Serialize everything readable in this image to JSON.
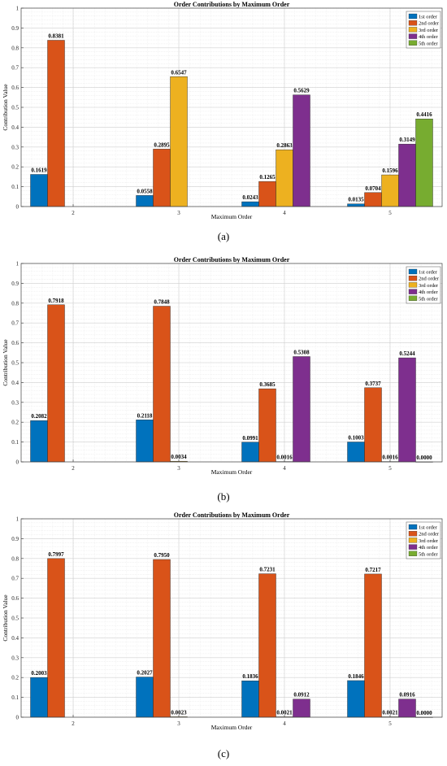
{
  "chart_data": [
    {
      "type": "bar",
      "title": "Order Contributions by Maximum Order",
      "xlabel": "Maximum Order",
      "ylabel": "Contribution Value",
      "categories": [
        "2",
        "3",
        "4",
        "5"
      ],
      "ylim": [
        0,
        1
      ],
      "yticks": [
        "0",
        "0.1",
        "0.2",
        "0.3",
        "0.4",
        "0.5",
        "0.6",
        "0.7",
        "0.8",
        "0.9",
        "1"
      ],
      "grid": true,
      "legend_position": "top-right",
      "caption": "(a)",
      "series": [
        {
          "name": "1st order",
          "color": "#0072BD",
          "values": [
            0.1619,
            0.0558,
            0.0243,
            0.0135
          ],
          "labels": [
            "0.1619",
            "0.0558",
            "0.0243",
            "0.0135"
          ]
        },
        {
          "name": "2nd order",
          "color": "#D95319",
          "values": [
            0.8381,
            0.2895,
            0.1265,
            0.0704
          ],
          "labels": [
            "0.8381",
            "0.2895",
            "0.1265",
            "0.0704"
          ]
        },
        {
          "name": "3rd order",
          "color": "#EDB120",
          "values": [
            null,
            0.6547,
            0.2863,
            0.1596
          ],
          "labels": [
            "",
            "0.6547",
            "0.2863",
            "0.1596"
          ]
        },
        {
          "name": "4th order",
          "color": "#7E2F8E",
          "values": [
            null,
            null,
            0.5629,
            0.3149
          ],
          "labels": [
            "",
            "",
            "0.5629",
            "0.3149"
          ]
        },
        {
          "name": "5th order",
          "color": "#77AC30",
          "values": [
            null,
            null,
            null,
            0.4416
          ],
          "labels": [
            "",
            "",
            "",
            "0.4416"
          ]
        }
      ]
    },
    {
      "type": "bar",
      "title": "Order Contributions by Maximum Order",
      "xlabel": "Maximum Order",
      "ylabel": "Contribution Value",
      "categories": [
        "2",
        "3",
        "4",
        "5"
      ],
      "ylim": [
        0,
        1
      ],
      "yticks": [
        "0",
        "0.1",
        "0.2",
        "0.3",
        "0.4",
        "0.5",
        "0.6",
        "0.7",
        "0.8",
        "0.9",
        "1"
      ],
      "grid": true,
      "legend_position": "top-right",
      "caption": "(b)",
      "series": [
        {
          "name": "1st order",
          "color": "#0072BD",
          "values": [
            0.2082,
            0.2118,
            0.0991,
            0.1003
          ],
          "labels": [
            "0.2082",
            "0.2118",
            "0.0991",
            "0.1003"
          ]
        },
        {
          "name": "2nd order",
          "color": "#D95319",
          "values": [
            0.7918,
            0.7848,
            0.3685,
            0.3737
          ],
          "labels": [
            "0.7918",
            "0.7848",
            "0.3685",
            "0.3737"
          ]
        },
        {
          "name": "3rd order",
          "color": "#EDB120",
          "values": [
            null,
            0.0034,
            0.0016,
            0.0016
          ],
          "labels": [
            "",
            "0.0034",
            "0.0016",
            "0.0016"
          ]
        },
        {
          "name": "4th order",
          "color": "#7E2F8E",
          "values": [
            null,
            null,
            0.5308,
            0.5244
          ],
          "labels": [
            "",
            "",
            "0.5308",
            "0.5244"
          ]
        },
        {
          "name": "5th order",
          "color": "#77AC30",
          "values": [
            null,
            null,
            null,
            0.0
          ],
          "labels": [
            "",
            "",
            "",
            "0.0000"
          ]
        }
      ]
    },
    {
      "type": "bar",
      "title": "Order Contributions by Maximum Order",
      "xlabel": "Maximum Order",
      "ylabel": "Contribution Value",
      "categories": [
        "2",
        "3",
        "4",
        "5"
      ],
      "ylim": [
        0,
        1
      ],
      "yticks": [
        "0",
        "0.1",
        "0.2",
        "0.3",
        "0.4",
        "0.5",
        "0.6",
        "0.7",
        "0.8",
        "0.9",
        "1"
      ],
      "grid": true,
      "legend_position": "top-right",
      "caption": "(c)",
      "series": [
        {
          "name": "1st order",
          "color": "#0072BD",
          "values": [
            0.2003,
            0.2027,
            0.1836,
            0.1846
          ],
          "labels": [
            "0.2003",
            "0.2027",
            "0.1836",
            "0.1846"
          ]
        },
        {
          "name": "2nd order",
          "color": "#D95319",
          "values": [
            0.7997,
            0.795,
            0.7231,
            0.7217
          ],
          "labels": [
            "0.7997",
            "0.7950",
            "0.7231",
            "0.7217"
          ]
        },
        {
          "name": "3rd order",
          "color": "#EDB120",
          "values": [
            null,
            0.0023,
            0.0021,
            0.0021
          ],
          "labels": [
            "",
            "0.0023",
            "0.0021",
            "0.0021"
          ]
        },
        {
          "name": "4th order",
          "color": "#7E2F8E",
          "values": [
            null,
            null,
            0.0912,
            0.0916
          ],
          "labels": [
            "",
            "",
            "0.0912",
            "0.0916"
          ]
        },
        {
          "name": "5th order",
          "color": "#77AC30",
          "values": [
            null,
            null,
            null,
            0.0
          ],
          "labels": [
            "",
            "",
            "",
            "0.0000"
          ]
        }
      ]
    }
  ]
}
